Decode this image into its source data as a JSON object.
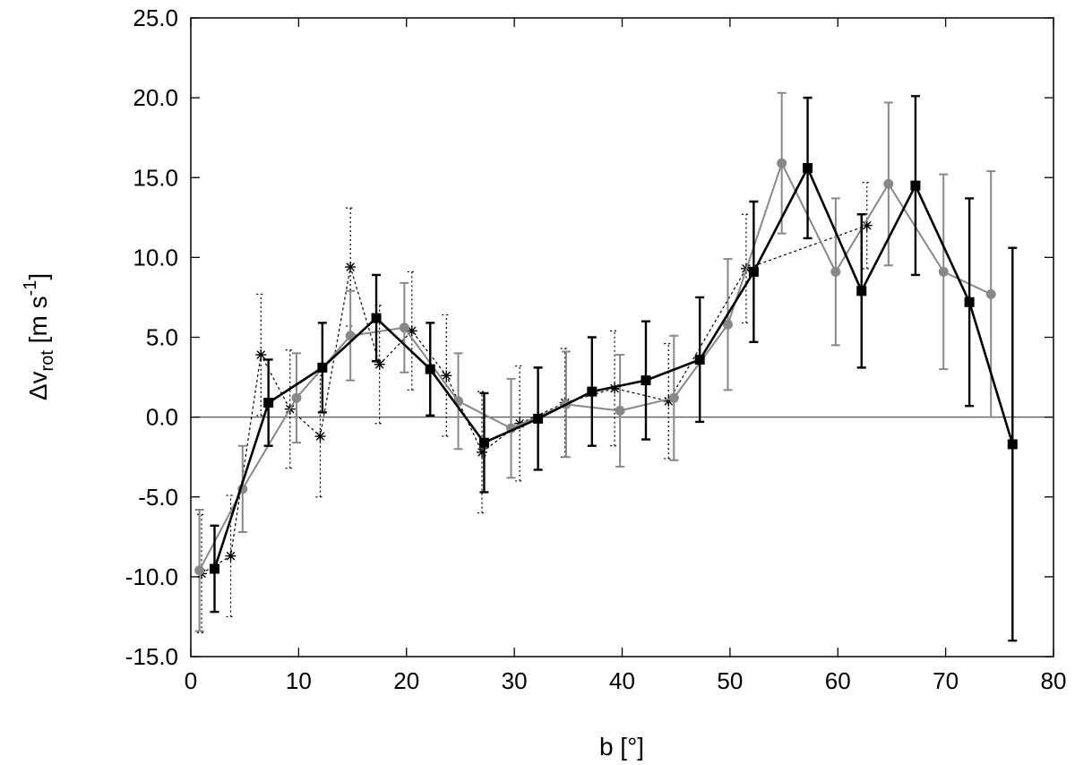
{
  "chart_data": {
    "type": "line",
    "xlabel": "b [°]",
    "ylabel_parts": {
      "delta": "Δv",
      "subscript": "rot",
      "units_open": " [m s",
      "superscript": "-1",
      "units_close": "]"
    },
    "xlim": [
      0,
      80
    ],
    "ylim": [
      -15,
      25
    ],
    "xticks": [
      "0",
      "10",
      "20",
      "30",
      "40",
      "50",
      "60",
      "70",
      "80"
    ],
    "xtick_values": [
      0,
      10,
      20,
      30,
      40,
      50,
      60,
      70,
      80
    ],
    "yticks": [
      "-15.0",
      "-10.0",
      "-5.0",
      "0.0",
      "5.0",
      "10.0",
      "15.0",
      "20.0",
      "25.0"
    ],
    "ytick_values": [
      -15,
      -10,
      -5,
      0,
      5,
      10,
      15,
      20,
      25
    ],
    "zero_line": true,
    "grid": false,
    "colors": {
      "squares": "#000000",
      "circles": "#888888",
      "stars": "#000000",
      "axis": "#000000",
      "zero": "#555555"
    },
    "series": [
      {
        "marker": "star",
        "line": "dotted",
        "x": [
          1.0,
          3.7,
          6.5,
          9.2,
          12.0,
          14.8,
          17.5,
          20.5,
          23.7,
          27.0,
          30.5,
          34.7,
          39.3,
          44.3,
          51.5,
          62.7
        ],
        "y": [
          -9.8,
          -8.7,
          3.9,
          0.5,
          -1.2,
          9.4,
          3.3,
          5.4,
          2.6,
          -2.2,
          -0.4,
          0.9,
          1.8,
          1.0,
          9.3,
          12.0
        ],
        "err": [
          3.7,
          3.8,
          3.8,
          3.7,
          3.8,
          3.7,
          3.7,
          3.7,
          3.8,
          3.8,
          3.6,
          3.4,
          3.6,
          3.6,
          3.4,
          2.7
        ]
      },
      {
        "marker": "circle",
        "line": "solid",
        "x": [
          0.8,
          4.8,
          9.8,
          14.8,
          19.8,
          24.8,
          29.7,
          34.8,
          39.8,
          44.8,
          49.8,
          54.8,
          59.8,
          64.7,
          69.8,
          74.2
        ],
        "y": [
          -9.6,
          -4.5,
          1.2,
          5.1,
          5.6,
          1.0,
          -0.7,
          0.8,
          0.4,
          1.2,
          5.8,
          15.9,
          9.1,
          14.6,
          9.1,
          7.7
        ],
        "err": [
          3.8,
          2.7,
          2.8,
          2.8,
          2.8,
          3.0,
          3.1,
          3.3,
          3.5,
          3.9,
          4.1,
          4.4,
          4.6,
          5.1,
          6.1,
          7.7
        ]
      },
      {
        "marker": "square",
        "line": "solid",
        "x": [
          2.2,
          7.2,
          12.2,
          17.2,
          22.2,
          27.2,
          32.2,
          37.2,
          42.2,
          47.2,
          52.2,
          57.2,
          62.2,
          67.2,
          72.2,
          76.2
        ],
        "y": [
          -9.5,
          0.9,
          3.1,
          6.2,
          3.0,
          -1.6,
          -0.1,
          1.6,
          2.3,
          3.6,
          9.1,
          15.6,
          7.9,
          14.5,
          7.2,
          -1.7
        ],
        "err": [
          2.7,
          2.7,
          2.8,
          2.7,
          2.9,
          3.1,
          3.2,
          3.4,
          3.7,
          3.9,
          4.4,
          4.4,
          4.8,
          5.6,
          6.5,
          12.3
        ]
      }
    ]
  }
}
